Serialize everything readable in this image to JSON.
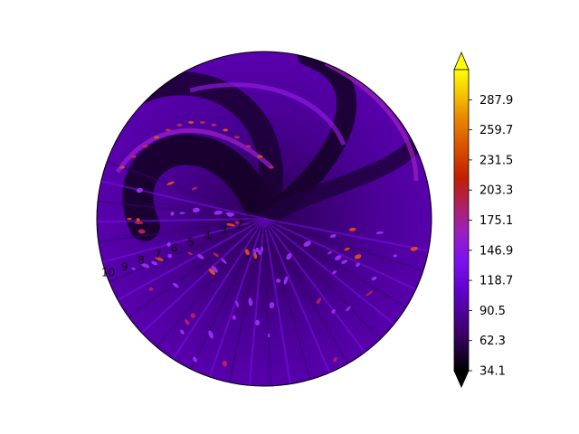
{
  "chart_data": {
    "type": "heatmap",
    "projection": "polar",
    "title": "",
    "xlabel": "",
    "ylabel": "",
    "colormap": "gnuplot",
    "colorbar": {
      "ticks": [
        "34.1",
        "62.3",
        "90.5",
        "118.7",
        "146.9",
        "175.1",
        "203.3",
        "231.5",
        "259.7",
        "287.9"
      ],
      "range": [
        34.1,
        316.1
      ],
      "extend": "both"
    },
    "radial_ticks": [
      "2",
      "3",
      "4",
      "5",
      "6",
      "7",
      "8",
      "9",
      "10"
    ],
    "grid": false
  }
}
